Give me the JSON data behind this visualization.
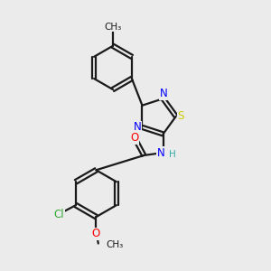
{
  "background_color": "#ebebeb",
  "bond_color": "#1a1a1a",
  "line_width": 1.6,
  "atom_colors": {
    "N": "#0000ff",
    "S": "#cccc00",
    "O": "#ff0000",
    "Cl": "#33aa33",
    "C": "#1a1a1a",
    "H": "#33aaaa"
  },
  "font_size": 8.5,
  "xlim": [
    0,
    10
  ],
  "ylim": [
    0,
    10
  ]
}
